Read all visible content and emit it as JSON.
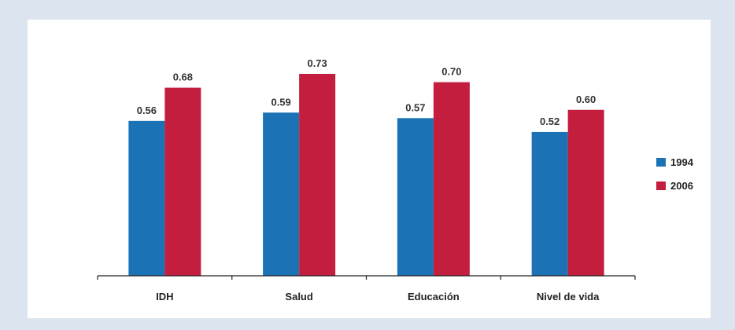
{
  "chart_data": {
    "type": "bar",
    "title": "",
    "xlabel": "",
    "ylabel": "",
    "categories": [
      "IDH",
      "Salud",
      "Educación",
      "Nivel de vida"
    ],
    "series": [
      {
        "name": "1994",
        "color": "#1b73b6",
        "values": [
          0.56,
          0.59,
          0.57,
          0.52
        ]
      },
      {
        "name": "2006",
        "color": "#c31e3d",
        "values": [
          0.68,
          0.73,
          0.7,
          0.6
        ]
      }
    ],
    "value_labels": [
      [
        "0.56",
        "0.59",
        "0.57",
        "0.52"
      ],
      [
        "0.68",
        "0.73",
        "0.70",
        "0.60"
      ]
    ],
    "ylim": [
      0,
      0.73
    ],
    "grid": false,
    "legend": "right"
  }
}
